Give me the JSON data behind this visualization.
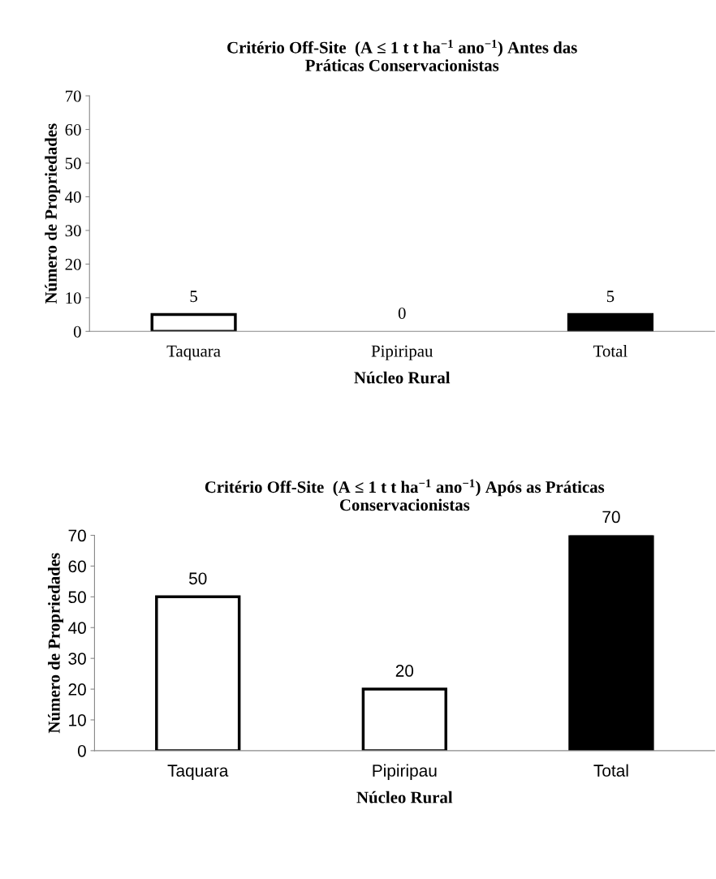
{
  "chart_data": [
    {
      "type": "bar",
      "title": "Critério Off-Site  (A ≤ 1 t t ha$^{−1}$ ano$^{−1}$) Antes das\nPráticas Conservacionistas",
      "xlabel": "Núcleo Rural",
      "ylabel": "Número de Propriedades",
      "categories": [
        "Taquara",
        "Pipiripau",
        "Total"
      ],
      "values": [
        5,
        0,
        5
      ],
      "colors": [
        "#ffffff",
        "#ffffff",
        "#000000"
      ],
      "ylim": [
        0,
        70
      ],
      "yticks": [
        0,
        10,
        20,
        30,
        40,
        50,
        60,
        70
      ],
      "data_labels": true
    },
    {
      "type": "bar",
      "title": "Critério Off-Site  (A ≤ 1 t t ha$^{−1}$ ano$^{−1}$) Após as Práticas\nConservacionistas",
      "xlabel": "Núcleo Rural",
      "ylabel": "Número de Propriedades",
      "categories": [
        "Taquara",
        "Pipiripau",
        "Total"
      ],
      "values": [
        50,
        20,
        70
      ],
      "colors": [
        "#ffffff",
        "#ffffff",
        "#000000"
      ],
      "ylim": [
        0,
        70
      ],
      "yticks": [
        0,
        10,
        20,
        30,
        40,
        50,
        60,
        70
      ],
      "data_labels": true
    }
  ]
}
